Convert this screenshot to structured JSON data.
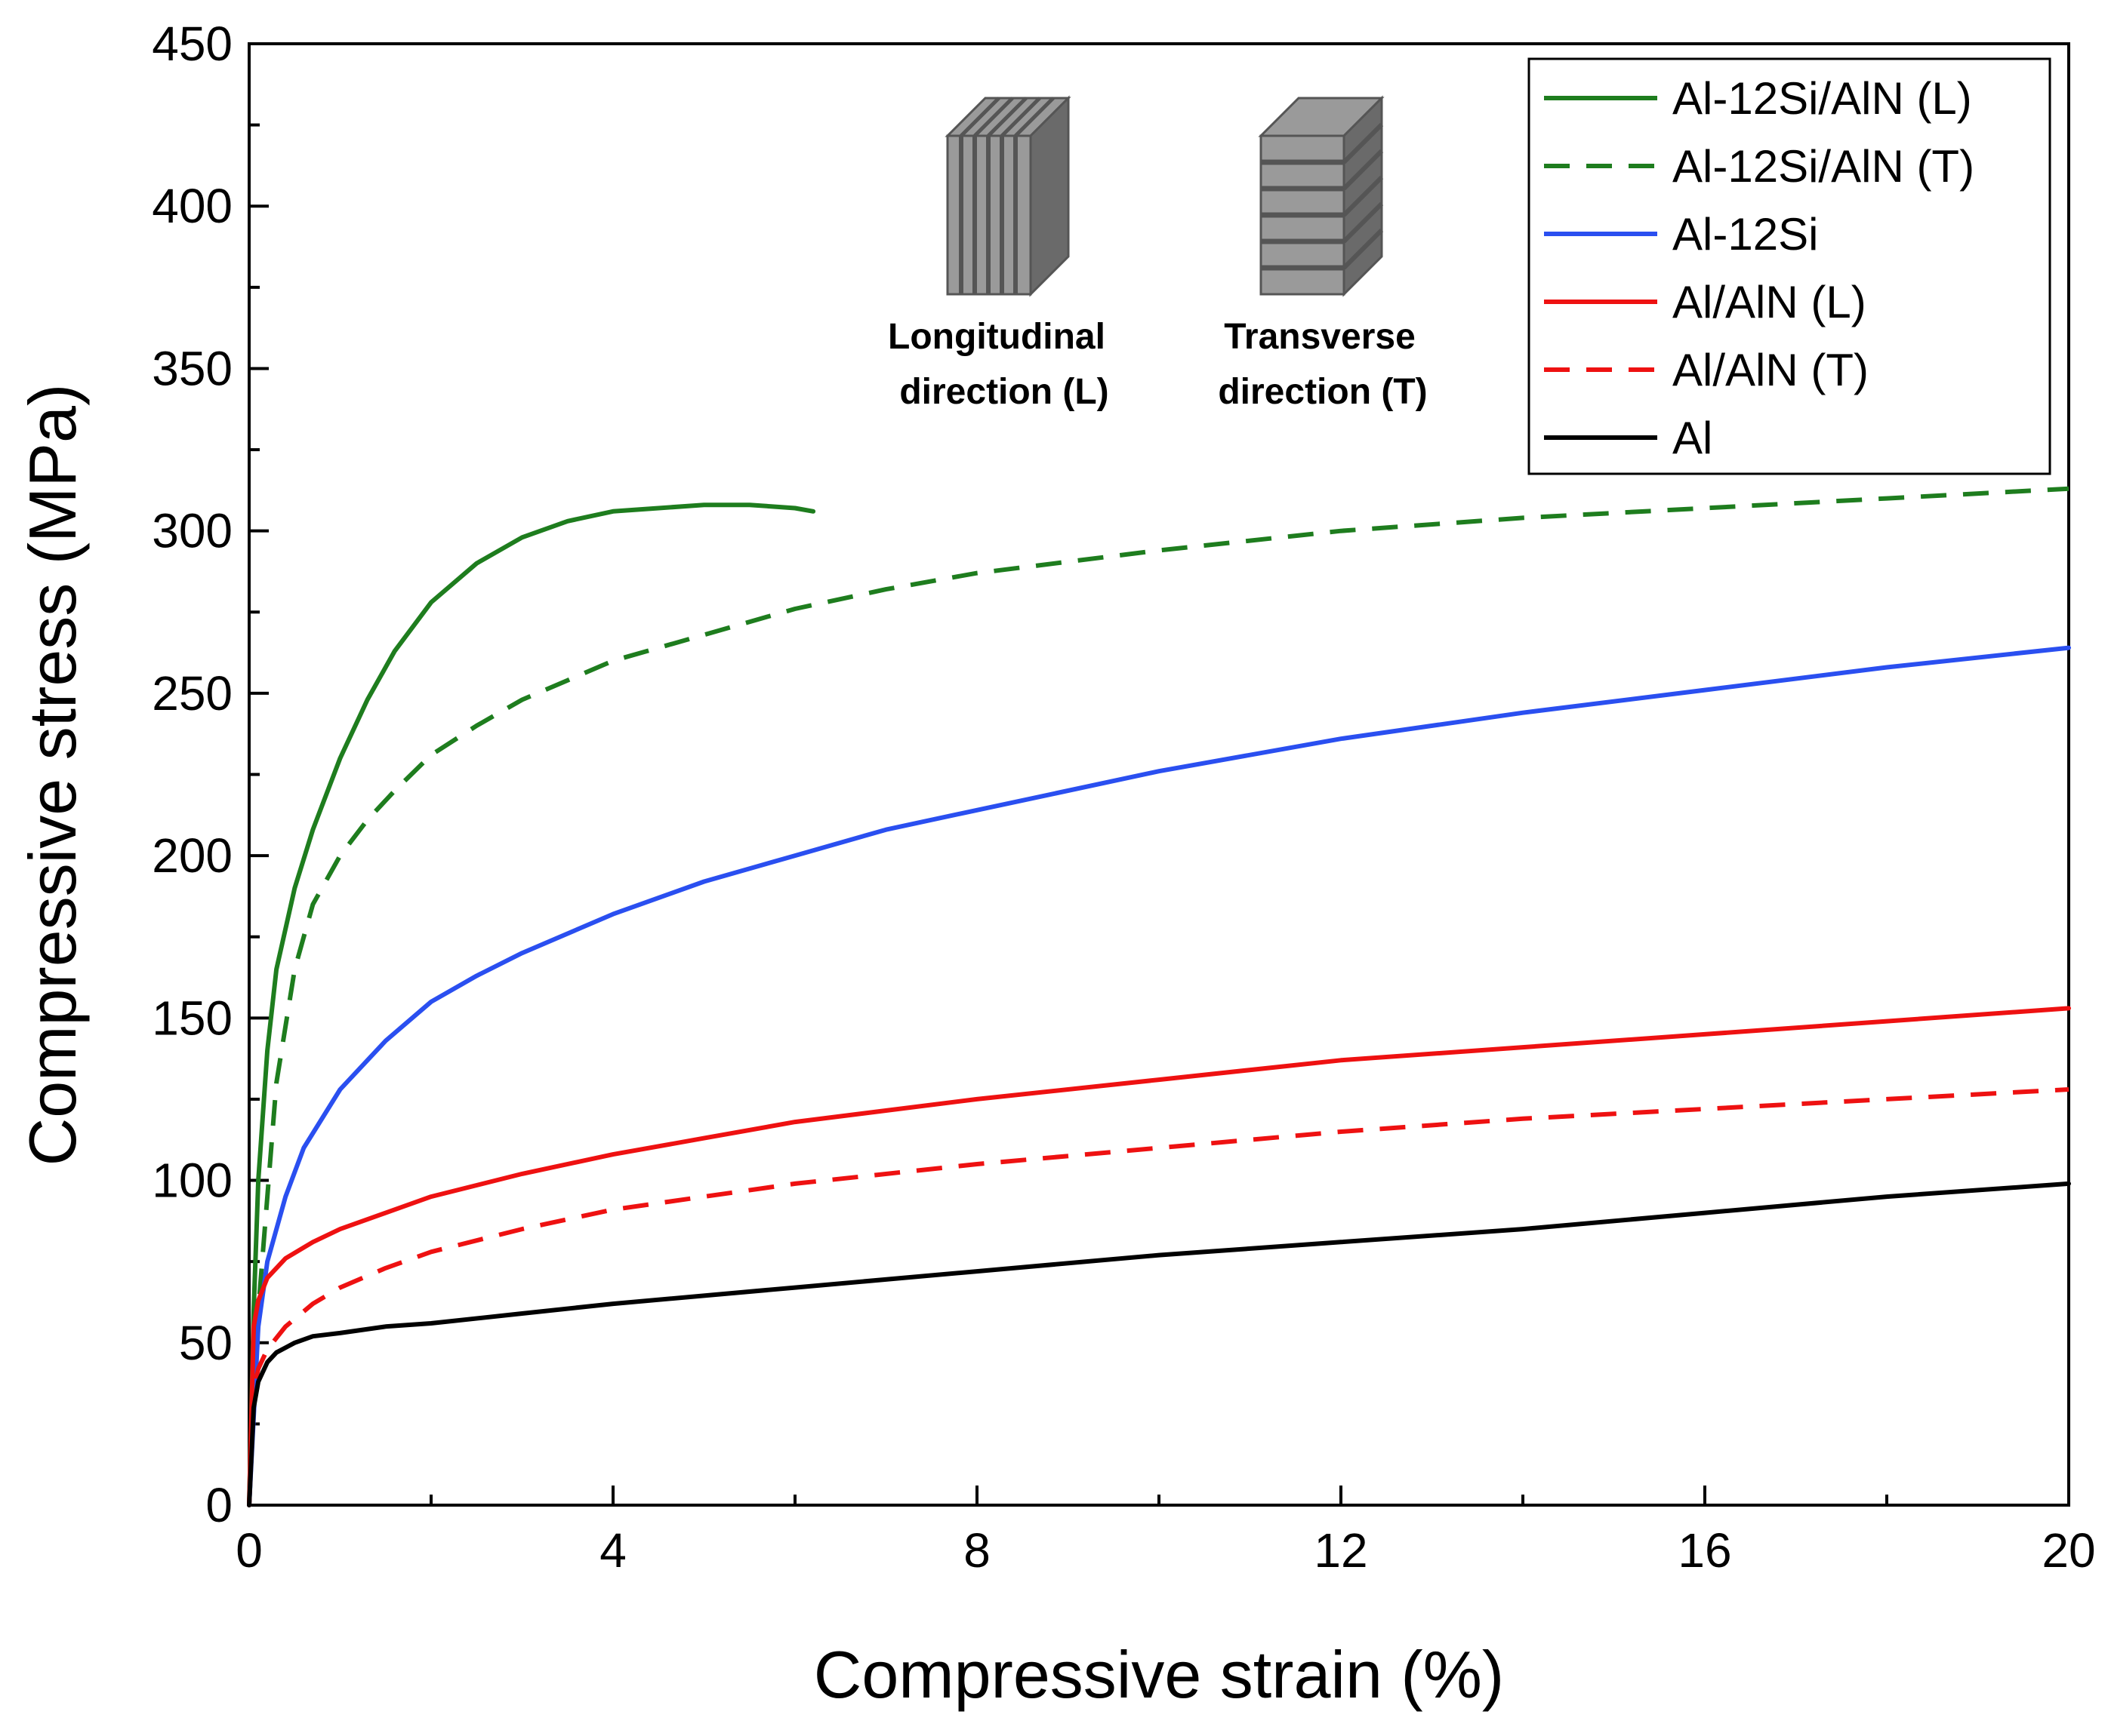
{
  "chart_data": {
    "type": "line",
    "title": "",
    "xlabel": "Compressive strain (%)",
    "ylabel": "Compressive stress (MPa)",
    "xlim": [
      0,
      20
    ],
    "ylim": [
      0,
      450
    ],
    "x_ticks": [
      0,
      4,
      8,
      12,
      16,
      20
    ],
    "x_tick_labels": [
      "0",
      "4",
      "8",
      "12",
      "16",
      "20"
    ],
    "y_ticks": [
      0,
      50,
      100,
      150,
      200,
      250,
      300,
      350,
      400,
      450
    ],
    "y_tick_labels": [
      "0",
      "50",
      "100",
      "150",
      "200",
      "250",
      "300",
      "350",
      "400",
      "450"
    ],
    "grid": false,
    "legend_position": "top-right",
    "series": [
      {
        "name": "Al-12Si/AlN (L)",
        "color": "#1e7d1e",
        "dash": "solid",
        "x": [
          0,
          0.05,
          0.1,
          0.2,
          0.3,
          0.5,
          0.7,
          1.0,
          1.3,
          1.6,
          2.0,
          2.5,
          3.0,
          3.5,
          4.0,
          4.5,
          5.0,
          5.5,
          6.0,
          6.2
        ],
        "y": [
          0,
          60,
          100,
          140,
          165,
          190,
          208,
          230,
          248,
          263,
          278,
          290,
          298,
          303,
          306,
          307,
          308,
          308,
          307,
          306
        ]
      },
      {
        "name": "Al-12Si/AlN (T)",
        "color": "#1e7d1e",
        "dash": "dashed",
        "x": [
          0,
          0.1,
          0.2,
          0.3,
          0.5,
          0.7,
          1.0,
          1.3,
          1.6,
          2.0,
          2.5,
          3.0,
          3.5,
          4.0,
          5.0,
          6.0,
          7.0,
          8.0,
          10.0,
          12.0,
          14.0,
          16.0,
          18.0,
          20.0
        ],
        "y": [
          0,
          60,
          95,
          130,
          165,
          185,
          200,
          211,
          220,
          231,
          240,
          248,
          254,
          260,
          268,
          276,
          282,
          287,
          294,
          300,
          304,
          307,
          310,
          313
        ]
      },
      {
        "name": "Al-12Si",
        "color": "#2a4ff0",
        "dash": "solid",
        "x": [
          0,
          0.1,
          0.2,
          0.4,
          0.6,
          1.0,
          1.5,
          2.0,
          2.5,
          3.0,
          4.0,
          5.0,
          6.0,
          7.0,
          8.0,
          10.0,
          12.0,
          14.0,
          16.0,
          18.0,
          20.0
        ],
        "y": [
          0,
          55,
          75,
          95,
          110,
          128,
          143,
          155,
          163,
          170,
          182,
          192,
          200,
          208,
          214,
          226,
          236,
          244,
          251,
          258,
          264
        ]
      },
      {
        "name": "Al/AlN (L)",
        "color": "#ee1111",
        "dash": "solid",
        "x": [
          0,
          0.05,
          0.1,
          0.2,
          0.4,
          0.7,
          1.0,
          1.5,
          2.0,
          3.0,
          4.0,
          5.0,
          6.0,
          8.0,
          10.0,
          12.0,
          14.0,
          16.0,
          18.0,
          20.0
        ],
        "y": [
          0,
          55,
          63,
          70,
          76,
          81,
          85,
          90,
          95,
          102,
          108,
          113,
          118,
          125,
          131,
          137,
          141,
          145,
          149,
          153
        ]
      },
      {
        "name": "Al/AlN (T)",
        "color": "#ee1111",
        "dash": "dashed",
        "x": [
          0,
          0.05,
          0.1,
          0.2,
          0.4,
          0.7,
          1.0,
          1.5,
          2.0,
          3.0,
          4.0,
          5.0,
          6.0,
          8.0,
          10.0,
          12.0,
          14.0,
          16.0,
          18.0,
          20.0
        ],
        "y": [
          0,
          35,
          42,
          48,
          55,
          62,
          67,
          73,
          78,
          85,
          91,
          95,
          99,
          105,
          110,
          115,
          119,
          122,
          125,
          128
        ]
      },
      {
        "name": "Al",
        "color": "#000000",
        "dash": "solid",
        "x": [
          0,
          0.05,
          0.1,
          0.2,
          0.3,
          0.5,
          0.7,
          1.0,
          1.5,
          2.0,
          3.0,
          4.0,
          6.0,
          8.0,
          10.0,
          12.0,
          14.0,
          16.0,
          18.0,
          20.0
        ],
        "y": [
          0,
          30,
          38,
          44,
          47,
          50,
          52,
          53,
          55,
          56,
          59,
          62,
          67,
          72,
          77,
          81,
          85,
          90,
          95,
          99
        ]
      }
    ],
    "annotations": {
      "longitudinal_line1": "Longitudinal",
      "longitudinal_line2": "direction (L)",
      "transverse_line1": "Transverse",
      "transverse_line2": "direction (T)"
    }
  }
}
